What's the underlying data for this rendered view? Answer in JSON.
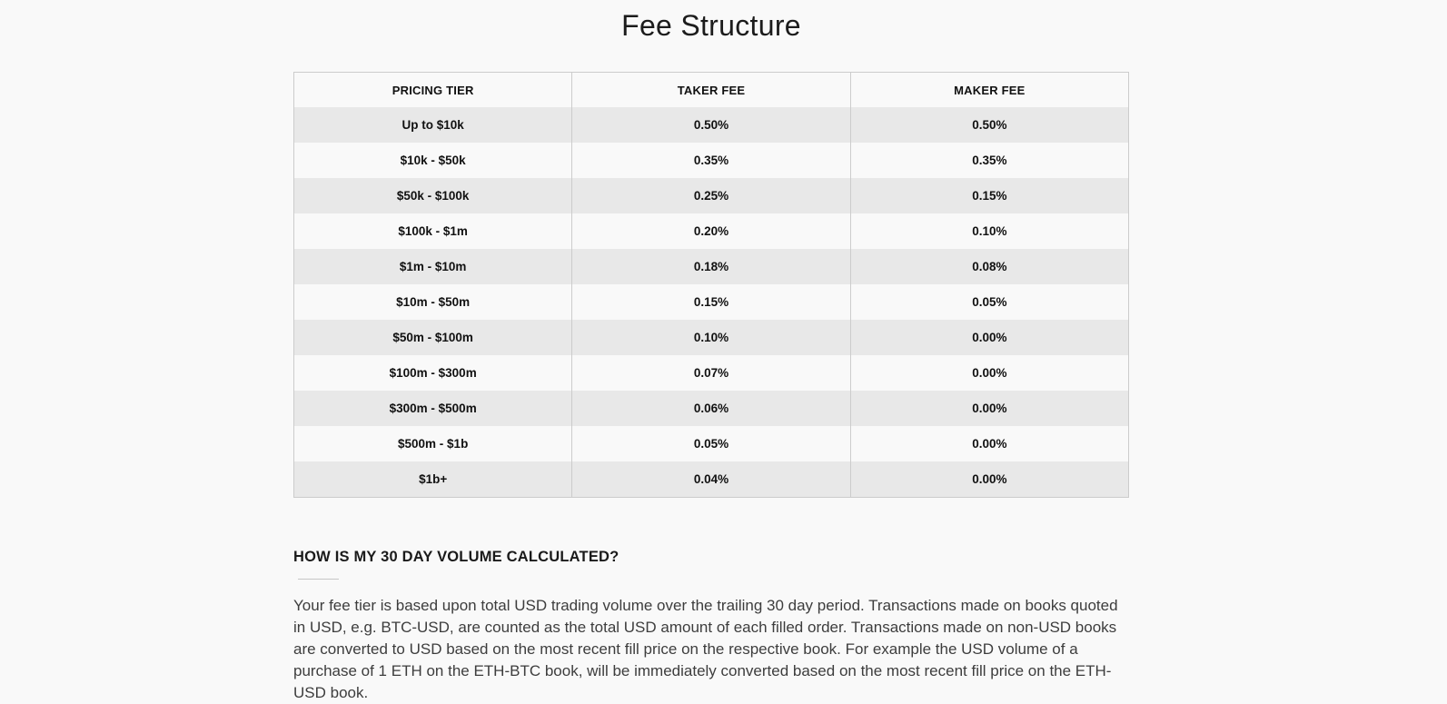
{
  "page": {
    "title": "Fee Structure"
  },
  "fee_table": {
    "columns": [
      "PRICING TIER",
      "TAKER FEE",
      "MAKER FEE"
    ],
    "rows": [
      {
        "tier": "Up to $10k",
        "taker": "0.50%",
        "maker": "0.50%"
      },
      {
        "tier": "$10k - $50k",
        "taker": "0.35%",
        "maker": "0.35%"
      },
      {
        "tier": "$50k - $100k",
        "taker": "0.25%",
        "maker": "0.15%"
      },
      {
        "tier": "$100k - $1m",
        "taker": "0.20%",
        "maker": "0.10%"
      },
      {
        "tier": "$1m - $10m",
        "taker": "0.18%",
        "maker": "0.08%"
      },
      {
        "tier": "$10m - $50m",
        "taker": "0.15%",
        "maker": "0.05%"
      },
      {
        "tier": "$50m - $100m",
        "taker": "0.10%",
        "maker": "0.00%"
      },
      {
        "tier": "$100m - $300m",
        "taker": "0.07%",
        "maker": "0.00%"
      },
      {
        "tier": "$300m - $500m",
        "taker": "0.06%",
        "maker": "0.00%"
      },
      {
        "tier": "$500m - $1b",
        "taker": "0.05%",
        "maker": "0.00%"
      },
      {
        "tier": "$1b+",
        "taker": "0.04%",
        "maker": "0.00%"
      }
    ]
  },
  "volume_section": {
    "heading": "HOW IS MY 30 DAY VOLUME CALCULATED?",
    "body": "Your fee tier is based upon total USD trading volume over the trailing 30 day period. Transactions made on books quoted in USD, e.g. BTC-USD, are counted as the total USD amount of each filled order. Transactions made on non-USD books are converted to USD based on the most recent fill price on the respective book. For example the USD volume of a purchase of 1 ETH on the ETH-BTC book, will be immediately converted based on the most recent fill price on the ETH-USD book."
  },
  "colors": {
    "page_bg": "#f9f9f9",
    "row_alt_bg": "#e8e8e8",
    "border": "#cccccc",
    "table_text": "#111111",
    "body_text": "#3d3d3d"
  }
}
